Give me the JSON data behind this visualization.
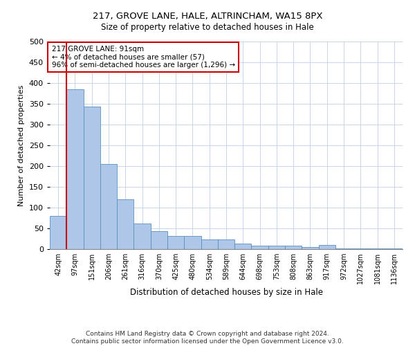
{
  "title1": "217, GROVE LANE, HALE, ALTRINCHAM, WA15 8PX",
  "title2": "Size of property relative to detached houses in Hale",
  "xlabel": "Distribution of detached houses by size in Hale",
  "ylabel": "Number of detached properties",
  "categories": [
    "42sqm",
    "97sqm",
    "151sqm",
    "206sqm",
    "261sqm",
    "316sqm",
    "370sqm",
    "425sqm",
    "480sqm",
    "534sqm",
    "589sqm",
    "644sqm",
    "698sqm",
    "753sqm",
    "808sqm",
    "863sqm",
    "917sqm",
    "972sqm",
    "1027sqm",
    "1081sqm",
    "1136sqm"
  ],
  "values": [
    80,
    385,
    344,
    205,
    120,
    62,
    44,
    32,
    31,
    23,
    23,
    14,
    8,
    9,
    8,
    5,
    10,
    2,
    1,
    1,
    2
  ],
  "bar_color": "#aec6e8",
  "bar_edge_color": "#5a8fc0",
  "vline_color": "#cc0000",
  "annotation_text": "217 GROVE LANE: 91sqm\n← 4% of detached houses are smaller (57)\n96% of semi-detached houses are larger (1,296) →",
  "annotation_box_color": "#ffffff",
  "annotation_box_edge": "#cc0000",
  "ylim": [
    0,
    500
  ],
  "yticks": [
    0,
    50,
    100,
    150,
    200,
    250,
    300,
    350,
    400,
    450,
    500
  ],
  "footer": "Contains HM Land Registry data © Crown copyright and database right 2024.\nContains public sector information licensed under the Open Government Licence v3.0.",
  "background_color": "#ffffff",
  "grid_color": "#c8d4e8"
}
